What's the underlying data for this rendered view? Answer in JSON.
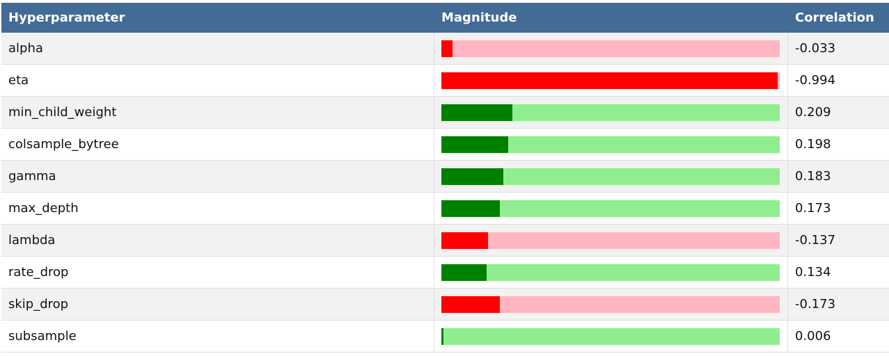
{
  "header": {
    "hyperparameter": "Hyperparameter",
    "magnitude": "Magnitude",
    "correlation": "Correlation"
  },
  "colors": {
    "negative_fill": "#ff0000",
    "negative_track": "#ffb6c1",
    "positive_fill": "#008000",
    "positive_track": "#90ee90"
  },
  "chart_data": {
    "type": "table",
    "columns": [
      "Hyperparameter",
      "Magnitude",
      "Correlation"
    ],
    "rows": [
      {
        "name": "alpha",
        "correlation": "-0.033",
        "value": -0.033
      },
      {
        "name": "eta",
        "correlation": "-0.994",
        "value": -0.994
      },
      {
        "name": "min_child_weight",
        "correlation": "0.209",
        "value": 0.209
      },
      {
        "name": "colsample_bytree",
        "correlation": "0.198",
        "value": 0.198
      },
      {
        "name": "gamma",
        "correlation": "0.183",
        "value": 0.183
      },
      {
        "name": "max_depth",
        "correlation": "0.173",
        "value": 0.173
      },
      {
        "name": "lambda",
        "correlation": "-0.137",
        "value": -0.137
      },
      {
        "name": "rate_drop",
        "correlation": "0.134",
        "value": 0.134
      },
      {
        "name": "skip_drop",
        "correlation": "-0.173",
        "value": -0.173
      },
      {
        "name": "subsample",
        "correlation": "0.006",
        "value": 0.006
      }
    ]
  }
}
